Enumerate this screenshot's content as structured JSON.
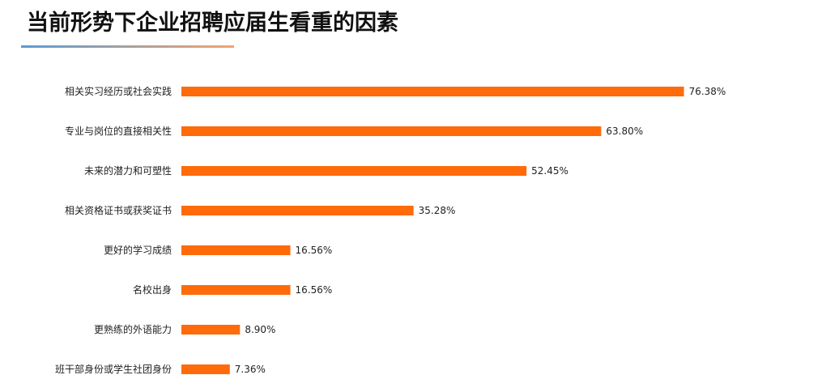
{
  "title": "当前形势下企业招聘应届生看重的因素",
  "colors": {
    "bar": "#FF6A0A",
    "underline_start": "#5A9BD5",
    "underline_end": "#F4A36B"
  },
  "chart_data": {
    "type": "bar",
    "orientation": "horizontal",
    "categories": [
      "相关实习经历或社会实践",
      "专业与岗位的直接相关性",
      "未来的潜力和可塑性",
      "相关资格证书或获奖证书",
      "更好的学习成绩",
      "名校出身",
      "更熟练的外语能力",
      "班干部身份或学生社团身份"
    ],
    "values": [
      76.38,
      63.8,
      52.45,
      35.28,
      16.56,
      16.56,
      8.9,
      7.36
    ],
    "value_labels": [
      "76.38%",
      "63.80%",
      "52.45%",
      "35.28%",
      "16.56%",
      "16.56%",
      "8.90%",
      "7.36%"
    ],
    "unit": "%",
    "xlim": [
      0,
      100
    ],
    "grid": false,
    "legend": "none"
  }
}
